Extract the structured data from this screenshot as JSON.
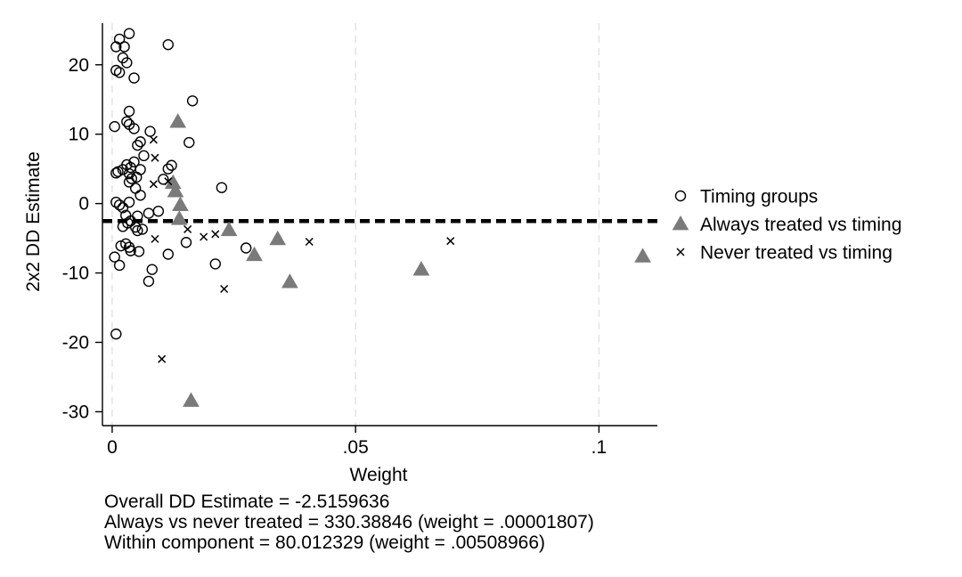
{
  "chart_data": {
    "type": "scatter",
    "xlabel": "Weight",
    "ylabel": "2x2 DD Estimate",
    "xlim": [
      -0.002,
      0.112
    ],
    "ylim": [
      -32,
      26
    ],
    "x_ticks": [
      0,
      0.05,
      0.1
    ],
    "x_tick_labels": [
      "0",
      ".05",
      ".1"
    ],
    "y_ticks": [
      -30,
      -20,
      -10,
      0,
      10,
      20
    ],
    "y_tick_labels": [
      "-30",
      "-20",
      "-10",
      "0",
      "10",
      "20"
    ],
    "grid": "vertical dashed at x ticks",
    "legend_position": "right",
    "reference_line": {
      "y": -2.5159636,
      "style": "dashed"
    },
    "series": [
      {
        "name": "Timing groups",
        "marker": "circle-hollow",
        "color": "#000000",
        "points": [
          [
            0.0035,
            24.5
          ],
          [
            0.0015,
            23.7
          ],
          [
            0.0025,
            22.6
          ],
          [
            0.0008,
            22.6
          ],
          [
            0.0115,
            22.9
          ],
          [
            0.0022,
            21.0
          ],
          [
            0.003,
            20.3
          ],
          [
            0.0008,
            19.2
          ],
          [
            0.0015,
            18.9
          ],
          [
            0.0045,
            18.1
          ],
          [
            0.0165,
            14.8
          ],
          [
            0.0035,
            13.3
          ],
          [
            0.003,
            11.8
          ],
          [
            0.0035,
            11.4
          ],
          [
            0.0005,
            11.1
          ],
          [
            0.0045,
            10.8
          ],
          [
            0.0078,
            10.4
          ],
          [
            0.0058,
            8.9
          ],
          [
            0.0052,
            8.4
          ],
          [
            0.0158,
            8.8
          ],
          [
            0.0065,
            6.9
          ],
          [
            0.0045,
            6.0
          ],
          [
            0.003,
            5.6
          ],
          [
            0.0038,
            5.2
          ],
          [
            0.0122,
            5.5
          ],
          [
            0.0115,
            5.0
          ],
          [
            0.0022,
            4.9
          ],
          [
            0.0012,
            4.6
          ],
          [
            0.0058,
            4.9
          ],
          [
            0.0035,
            4.3
          ],
          [
            0.0008,
            4.4
          ],
          [
            0.004,
            3.6
          ],
          [
            0.005,
            3.8
          ],
          [
            0.0035,
            3.1
          ],
          [
            0.0105,
            3.5
          ],
          [
            0.0048,
            2.2
          ],
          [
            0.0225,
            2.3
          ],
          [
            0.0058,
            1.2
          ],
          [
            0.0008,
            0.2
          ],
          [
            0.0035,
            0.2
          ],
          [
            0.0015,
            -0.2
          ],
          [
            0.0022,
            -0.6
          ],
          [
            0.0095,
            -1.1
          ],
          [
            0.0028,
            -1.7
          ],
          [
            0.0052,
            -1.8
          ],
          [
            0.0075,
            -1.4
          ],
          [
            0.0038,
            -2.5
          ],
          [
            0.0032,
            -2.8
          ],
          [
            0.0022,
            -3.3
          ],
          [
            0.0048,
            -3.4
          ],
          [
            0.0052,
            -3.9
          ],
          [
            0.0062,
            -3.7
          ],
          [
            0.0028,
            -5.8
          ],
          [
            0.0035,
            -6.3
          ],
          [
            0.0152,
            -5.6
          ],
          [
            0.0018,
            -6.1
          ],
          [
            0.0038,
            -6.8
          ],
          [
            0.0055,
            -6.9
          ],
          [
            0.0275,
            -6.4
          ],
          [
            0.0115,
            -7.3
          ],
          [
            0.0005,
            -7.7
          ],
          [
            0.0015,
            -8.9
          ],
          [
            0.0212,
            -8.7
          ],
          [
            0.0082,
            -9.5
          ],
          [
            0.0075,
            -11.2
          ],
          [
            0.0008,
            -18.8
          ]
        ]
      },
      {
        "name": "Always treated vs timing",
        "marker": "triangle-filled",
        "color": "#7a7a7a",
        "points": [
          [
            0.0135,
            11.8
          ],
          [
            0.0125,
            3.0
          ],
          [
            0.013,
            1.8
          ],
          [
            0.014,
            -0.2
          ],
          [
            0.0138,
            -2.2
          ],
          [
            0.024,
            -3.8
          ],
          [
            0.034,
            -5.1
          ],
          [
            0.0292,
            -7.4
          ],
          [
            0.0365,
            -11.3
          ],
          [
            0.0635,
            -9.5
          ],
          [
            0.109,
            -7.6
          ],
          [
            0.0162,
            -28.4
          ]
        ]
      },
      {
        "name": "Never treated vs timing",
        "marker": "x",
        "color": "#000000",
        "points": [
          [
            0.0085,
            9.2
          ],
          [
            0.0088,
            6.6
          ],
          [
            0.0085,
            2.8
          ],
          [
            0.0115,
            3.2
          ],
          [
            0.0088,
            -5.1
          ],
          [
            0.0155,
            -3.7
          ],
          [
            0.0188,
            -4.8
          ],
          [
            0.0212,
            -4.4
          ],
          [
            0.0405,
            -5.5
          ],
          [
            0.0695,
            -5.4
          ],
          [
            0.023,
            -12.3
          ],
          [
            0.0102,
            -22.4
          ]
        ]
      }
    ]
  },
  "notes": {
    "overall": "Overall DD Estimate = -2.5159636",
    "always_vs_never": "Always vs never treated = 330.38846 (weight = .00001807)",
    "within": "Within component = 80.012329 (weight = .00508966)"
  }
}
